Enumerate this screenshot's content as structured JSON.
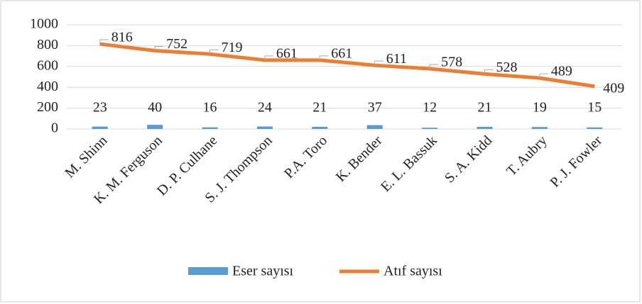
{
  "chart_data": {
    "type": "combo",
    "categories": [
      "M. Shinn",
      "K. M. Ferguson",
      "D. P. Culhane",
      "S. J. Thompson",
      "P.A. Toro",
      "K. Bender",
      "E. L. Bassuk",
      "S. A. Kidd",
      "T. Aubry",
      "P. J. Fowler"
    ],
    "series": [
      {
        "name": "Eser sayısı",
        "type": "bar",
        "color": "#5b9bd5",
        "values": [
          23,
          40,
          16,
          24,
          21,
          37,
          12,
          21,
          19,
          15
        ]
      },
      {
        "name": "Atıf sayısı",
        "type": "line",
        "color": "#ed7d31",
        "values": [
          816,
          752,
          719,
          661,
          661,
          611,
          578,
          528,
          489,
          409
        ]
      }
    ],
    "ylim": [
      0,
      1000
    ],
    "yticks": [
      0,
      200,
      400,
      600,
      800,
      1000
    ],
    "grid": true,
    "legend": "bottom"
  }
}
